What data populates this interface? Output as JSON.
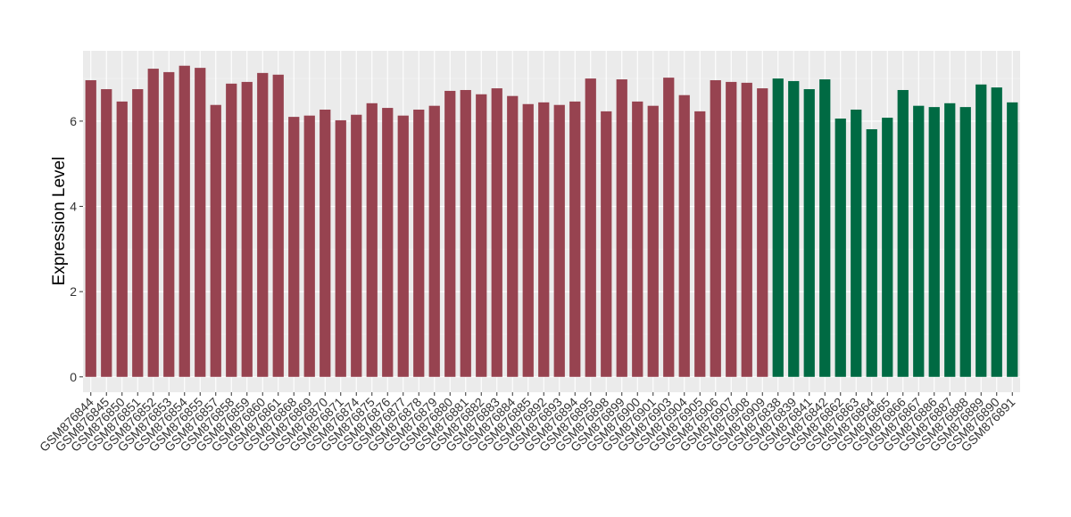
{
  "chart_data": {
    "type": "bar",
    "y_label": "Expression Level",
    "categories": [
      "GSM876844",
      "GSM876845",
      "GSM876850",
      "GSM876851",
      "GSM876852",
      "GSM876853",
      "GSM876854",
      "GSM876855",
      "GSM876857",
      "GSM876858",
      "GSM876859",
      "GSM876860",
      "GSM876861",
      "GSM876868",
      "GSM876869",
      "GSM876870",
      "GSM876871",
      "GSM876874",
      "GSM876875",
      "GSM876876",
      "GSM876877",
      "GSM876878",
      "GSM876879",
      "GSM876880",
      "GSM876881",
      "GSM876882",
      "GSM876883",
      "GSM876884",
      "GSM876885",
      "GSM876892",
      "GSM876893",
      "GSM876894",
      "GSM876895",
      "GSM876898",
      "GSM876899",
      "GSM876900",
      "GSM876901",
      "GSM876903",
      "GSM876904",
      "GSM876905",
      "GSM876906",
      "GSM876907",
      "GSM876908",
      "GSM876909",
      "GSM876838",
      "GSM876839",
      "GSM876841",
      "GSM876842",
      "GSM876862",
      "GSM876863",
      "GSM876864",
      "GSM876865",
      "GSM876866",
      "GSM876867",
      "GSM876886",
      "GSM876887",
      "GSM876888",
      "GSM876889",
      "GSM876890",
      "GSM876891"
    ],
    "values": [
      6.96,
      6.75,
      6.46,
      6.75,
      7.23,
      7.15,
      7.3,
      7.25,
      6.38,
      6.88,
      6.92,
      7.13,
      7.09,
      6.1,
      6.13,
      6.27,
      6.02,
      6.15,
      6.42,
      6.31,
      6.13,
      6.27,
      6.36,
      6.71,
      6.73,
      6.63,
      6.77,
      6.59,
      6.4,
      6.44,
      6.38,
      6.46,
      7.0,
      6.23,
      6.98,
      6.46,
      6.36,
      7.02,
      6.61,
      6.23,
      6.96,
      6.92,
      6.9,
      6.77,
      7.0,
      6.94,
      6.75,
      6.98,
      6.06,
      6.27,
      5.81,
      6.08,
      6.73,
      6.36,
      6.33,
      6.42,
      6.33,
      6.86,
      6.79,
      6.44
    ],
    "colors": [
      "#974350",
      "#974350",
      "#974350",
      "#974350",
      "#974350",
      "#974350",
      "#974350",
      "#974350",
      "#974350",
      "#974350",
      "#974350",
      "#974350",
      "#974350",
      "#974350",
      "#974350",
      "#974350",
      "#974350",
      "#974350",
      "#974350",
      "#974350",
      "#974350",
      "#974350",
      "#974350",
      "#974350",
      "#974350",
      "#974350",
      "#974350",
      "#974350",
      "#974350",
      "#974350",
      "#974350",
      "#974350",
      "#974350",
      "#974350",
      "#974350",
      "#974350",
      "#974350",
      "#974350",
      "#974350",
      "#974350",
      "#974350",
      "#974350",
      "#974350",
      "#974350",
      "#006a43",
      "#006a43",
      "#006a43",
      "#006a43",
      "#006a43",
      "#006a43",
      "#006a43",
      "#006a43",
      "#006a43",
      "#006a43",
      "#006a43",
      "#006a43",
      "#006a43",
      "#006a43",
      "#006a43",
      "#006a43"
    ],
    "ylim": [
      -0.36,
      7.65
    ],
    "yticks": [
      0,
      2,
      4,
      6
    ],
    "y_minor_ticks": [
      1,
      3,
      5,
      7
    ],
    "grid": true
  }
}
